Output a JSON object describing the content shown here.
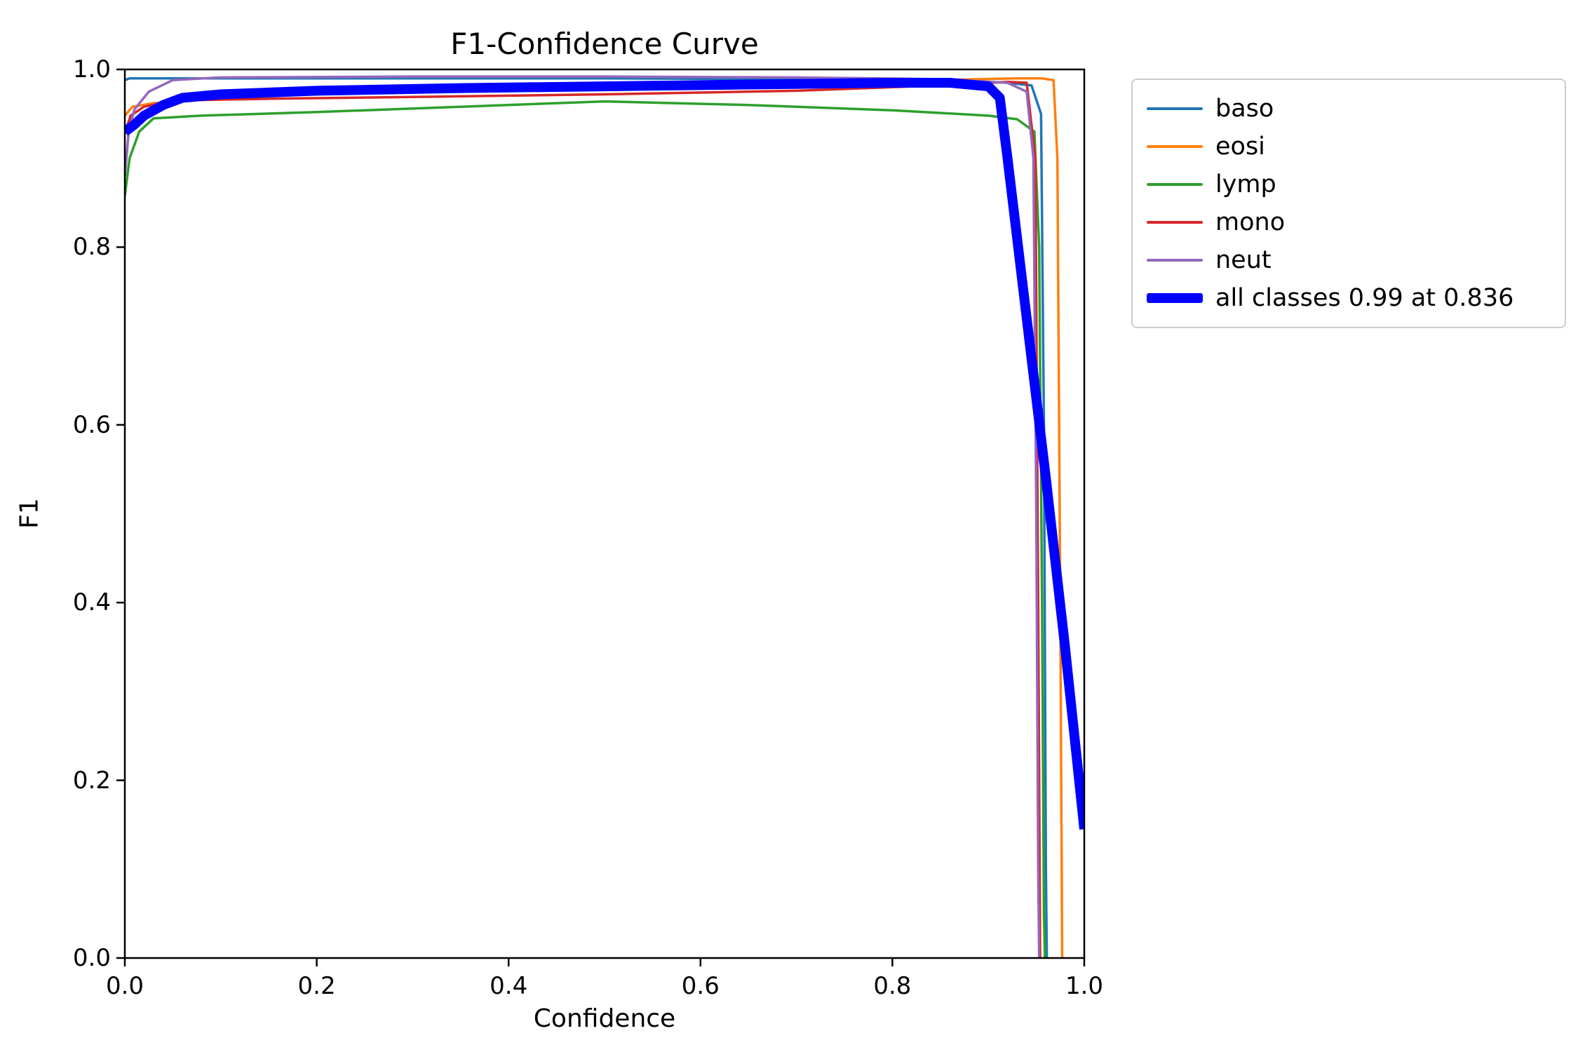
{
  "chart_data": {
    "type": "line",
    "title": "F1-Confidence Curve",
    "xlabel": "Confidence",
    "ylabel": "F1",
    "xlim": [
      0.0,
      1.0
    ],
    "ylim": [
      0.0,
      1.0
    ],
    "grid": false,
    "legend_position": "outside-top-right",
    "xtick_values": [
      0.0,
      0.2,
      0.4,
      0.6,
      0.8,
      1.0
    ],
    "xtick_labels": [
      "0.0",
      "0.2",
      "0.4",
      "0.6",
      "0.8",
      "1.0"
    ],
    "ytick_values": [
      0.0,
      0.2,
      0.4,
      0.6,
      0.8,
      1.0
    ],
    "ytick_labels": [
      "0.0",
      "0.2",
      "0.4",
      "0.6",
      "0.8",
      "1.0"
    ],
    "series": [
      {
        "name": "baso",
        "legend_label": "baso",
        "color": "#1f77b4",
        "linewidth": 3.5,
        "points": [
          [
            0,
            0.988
          ],
          [
            0.005,
            0.99
          ],
          [
            0.1,
            0.99
          ],
          [
            0.3,
            0.99
          ],
          [
            0.5,
            0.99
          ],
          [
            0.7,
            0.989
          ],
          [
            0.85,
            0.988
          ],
          [
            0.92,
            0.985
          ],
          [
            0.945,
            0.982
          ],
          [
            0.955,
            0.95
          ],
          [
            0.958,
            0.6
          ],
          [
            0.96,
            0.1
          ],
          [
            0.961,
            0
          ]
        ]
      },
      {
        "name": "eosi",
        "legend_label": "eosi",
        "color": "#ff7f0e",
        "linewidth": 3.5,
        "points": [
          [
            0,
            0.948
          ],
          [
            0.008,
            0.958
          ],
          [
            0.03,
            0.962
          ],
          [
            0.1,
            0.968
          ],
          [
            0.3,
            0.976
          ],
          [
            0.5,
            0.982
          ],
          [
            0.7,
            0.986
          ],
          [
            0.85,
            0.988
          ],
          [
            0.93,
            0.99
          ],
          [
            0.955,
            0.99
          ],
          [
            0.968,
            0.988
          ],
          [
            0.972,
            0.9
          ],
          [
            0.975,
            0.4
          ],
          [
            0.977,
            0
          ]
        ]
      },
      {
        "name": "lymp",
        "legend_label": "lymp",
        "color": "#2ca02c",
        "linewidth": 3.5,
        "points": [
          [
            0,
            0.858
          ],
          [
            0.005,
            0.9
          ],
          [
            0.015,
            0.93
          ],
          [
            0.03,
            0.945
          ],
          [
            0.08,
            0.948
          ],
          [
            0.2,
            0.952
          ],
          [
            0.35,
            0.958
          ],
          [
            0.5,
            0.964
          ],
          [
            0.65,
            0.96
          ],
          [
            0.8,
            0.954
          ],
          [
            0.9,
            0.948
          ],
          [
            0.93,
            0.944
          ],
          [
            0.948,
            0.93
          ],
          [
            0.953,
            0.8
          ],
          [
            0.956,
            0.4
          ],
          [
            0.958,
            0.05
          ],
          [
            0.959,
            0
          ]
        ]
      },
      {
        "name": "mono",
        "legend_label": "mono",
        "color": "#d62728",
        "linewidth": 3.5,
        "points": [
          [
            0,
            0.928
          ],
          [
            0.006,
            0.948
          ],
          [
            0.02,
            0.958
          ],
          [
            0.05,
            0.965
          ],
          [
            0.15,
            0.967
          ],
          [
            0.3,
            0.969
          ],
          [
            0.5,
            0.972
          ],
          [
            0.7,
            0.976
          ],
          [
            0.85,
            0.982
          ],
          [
            0.92,
            0.986
          ],
          [
            0.94,
            0.985
          ],
          [
            0.949,
            0.9
          ],
          [
            0.952,
            0.4
          ],
          [
            0.954,
            0
          ]
        ]
      },
      {
        "name": "neut",
        "legend_label": "neut",
        "color": "#9467bd",
        "linewidth": 3.5,
        "points": [
          [
            0,
            0.88
          ],
          [
            0.004,
            0.93
          ],
          [
            0.01,
            0.955
          ],
          [
            0.025,
            0.975
          ],
          [
            0.05,
            0.988
          ],
          [
            0.1,
            0.991
          ],
          [
            0.3,
            0.992
          ],
          [
            0.5,
            0.992
          ],
          [
            0.7,
            0.991
          ],
          [
            0.85,
            0.989
          ],
          [
            0.92,
            0.985
          ],
          [
            0.94,
            0.975
          ],
          [
            0.947,
            0.9
          ],
          [
            0.95,
            0.5
          ],
          [
            0.952,
            0.1
          ],
          [
            0.953,
            0
          ]
        ]
      },
      {
        "name": "all-classes",
        "legend_label": "all classes 0.99 at 0.836",
        "color": "#0000ff",
        "linewidth": 14,
        "points": [
          [
            0,
            0.93
          ],
          [
            0.01,
            0.938
          ],
          [
            0.02,
            0.948
          ],
          [
            0.04,
            0.96
          ],
          [
            0.06,
            0.968
          ],
          [
            0.1,
            0.972
          ],
          [
            0.2,
            0.976
          ],
          [
            0.35,
            0.979
          ],
          [
            0.5,
            0.981
          ],
          [
            0.65,
            0.983
          ],
          [
            0.8,
            0.985
          ],
          [
            0.86,
            0.985
          ],
          [
            0.9,
            0.981
          ],
          [
            0.912,
            0.968
          ],
          [
            0.92,
            0.9
          ],
          [
            0.94,
            0.72
          ],
          [
            0.96,
            0.54
          ],
          [
            0.98,
            0.35
          ],
          [
            1.0,
            0.145
          ]
        ]
      }
    ]
  }
}
